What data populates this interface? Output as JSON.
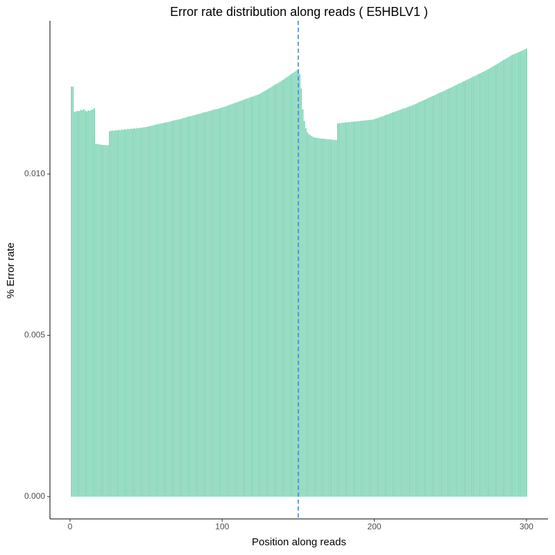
{
  "chart_data": {
    "type": "bar",
    "title": "Error rate distribution along reads ( E5HBLV1 )",
    "xlabel": "Position along reads",
    "ylabel": "% Error rate",
    "color": "#7dd3b4",
    "vline": {
      "x": 150,
      "color": "#3a7cc9"
    },
    "xlim": [
      -13.2,
      314.2
    ],
    "ylim": [
      -0.00069,
      0.01475
    ],
    "xticks": [
      0,
      100,
      200,
      300
    ],
    "yticks": [
      {
        "value": 0,
        "label": "0.000"
      },
      {
        "value": 0.005,
        "label": "0.005"
      },
      {
        "value": 0.01,
        "label": "0.010"
      }
    ],
    "grid": false,
    "x": [
      1,
      2,
      3,
      4,
      5,
      6,
      7,
      8,
      9,
      10,
      11,
      12,
      13,
      14,
      15,
      16,
      17,
      18,
      19,
      20,
      21,
      22,
      23,
      24,
      25,
      26,
      27,
      28,
      29,
      30,
      31,
      32,
      33,
      34,
      35,
      36,
      37,
      38,
      39,
      40,
      41,
      42,
      43,
      44,
      45,
      46,
      47,
      48,
      49,
      50,
      51,
      52,
      53,
      54,
      55,
      56,
      57,
      58,
      59,
      60,
      61,
      62,
      63,
      64,
      65,
      66,
      67,
      68,
      69,
      70,
      71,
      72,
      73,
      74,
      75,
      76,
      77,
      78,
      79,
      80,
      81,
      82,
      83,
      84,
      85,
      86,
      87,
      88,
      89,
      90,
      91,
      92,
      93,
      94,
      95,
      96,
      97,
      98,
      99,
      100,
      101,
      102,
      103,
      104,
      105,
      106,
      107,
      108,
      109,
      110,
      111,
      112,
      113,
      114,
      115,
      116,
      117,
      118,
      119,
      120,
      121,
      122,
      123,
      124,
      125,
      126,
      127,
      128,
      129,
      130,
      131,
      132,
      133,
      134,
      135,
      136,
      137,
      138,
      139,
      140,
      141,
      142,
      143,
      144,
      145,
      146,
      147,
      148,
      149,
      150,
      151,
      152,
      153,
      154,
      155,
      156,
      157,
      158,
      159,
      160,
      161,
      162,
      163,
      164,
      165,
      166,
      167,
      168,
      169,
      170,
      171,
      172,
      173,
      174,
      175,
      176,
      177,
      178,
      179,
      180,
      181,
      182,
      183,
      184,
      185,
      186,
      187,
      188,
      189,
      190,
      191,
      192,
      193,
      194,
      195,
      196,
      197,
      198,
      199,
      200,
      201,
      202,
      203,
      204,
      205,
      206,
      207,
      208,
      209,
      210,
      211,
      212,
      213,
      214,
      215,
      216,
      217,
      218,
      219,
      220,
      221,
      222,
      223,
      224,
      225,
      226,
      227,
      228,
      229,
      230,
      231,
      232,
      233,
      234,
      235,
      236,
      237,
      238,
      239,
      240,
      241,
      242,
      243,
      244,
      245,
      246,
      247,
      248,
      249,
      250,
      251,
      252,
      253,
      254,
      255,
      256,
      257,
      258,
      259,
      260,
      261,
      262,
      263,
      264,
      265,
      266,
      267,
      268,
      269,
      270,
      271,
      272,
      273,
      274,
      275,
      276,
      277,
      278,
      279,
      280,
      281,
      282,
      283,
      284,
      285,
      286,
      287,
      288,
      289,
      290,
      291,
      292,
      293,
      294,
      295,
      296,
      297,
      298,
      299,
      300
    ],
    "values": [
      0.01271,
      0.01271,
      0.01193,
      0.01194,
      0.01196,
      0.01195,
      0.01199,
      0.01198,
      0.01201,
      0.01197,
      0.01194,
      0.01198,
      0.01196,
      0.01199,
      0.012,
      0.01204,
      0.01093,
      0.01094,
      0.01092,
      0.01091,
      0.01091,
      0.0109,
      0.0109,
      0.01089,
      0.0109,
      0.01133,
      0.01134,
      0.01135,
      0.01134,
      0.01136,
      0.01135,
      0.01137,
      0.01136,
      0.01138,
      0.01137,
      0.01139,
      0.01138,
      0.0114,
      0.01139,
      0.01141,
      0.0114,
      0.01142,
      0.01141,
      0.01143,
      0.01142,
      0.01144,
      0.01143,
      0.01145,
      0.01145,
      0.01146,
      0.01147,
      0.01148,
      0.01149,
      0.0115,
      0.01152,
      0.01153,
      0.01154,
      0.01155,
      0.01156,
      0.01157,
      0.01158,
      0.01159,
      0.0116,
      0.01161,
      0.01162,
      0.01163,
      0.01165,
      0.01166,
      0.01167,
      0.01168,
      0.01169,
      0.0117,
      0.01171,
      0.01173,
      0.01174,
      0.01175,
      0.01177,
      0.01178,
      0.01179,
      0.0118,
      0.01182,
      0.01183,
      0.01184,
      0.01186,
      0.01187,
      0.01188,
      0.0119,
      0.01191,
      0.01192,
      0.01193,
      0.01195,
      0.01196,
      0.01197,
      0.01199,
      0.012,
      0.01201,
      0.01202,
      0.01203,
      0.01205,
      0.01206,
      0.01208,
      0.01209,
      0.01211,
      0.01213,
      0.01215,
      0.01216,
      0.01218,
      0.0122,
      0.01221,
      0.01223,
      0.01225,
      0.01227,
      0.01228,
      0.0123,
      0.01232,
      0.01234,
      0.01235,
      0.01237,
      0.01239,
      0.0124,
      0.01242,
      0.01244,
      0.01245,
      0.01247,
      0.01249,
      0.01252,
      0.01255,
      0.01258,
      0.0126,
      0.01263,
      0.01266,
      0.01269,
      0.01272,
      0.01275,
      0.01278,
      0.0128,
      0.01283,
      0.01286,
      0.01289,
      0.01292,
      0.01295,
      0.01299,
      0.01302,
      0.01305,
      0.01309,
      0.01312,
      0.01315,
      0.01318,
      0.01322,
      0.01325,
      0.0131,
      0.01265,
      0.012,
      0.01165,
      0.01142,
      0.0113,
      0.01124,
      0.0112,
      0.01117,
      0.01114,
      0.01113,
      0.01112,
      0.01112,
      0.01111,
      0.0111,
      0.0111,
      0.01109,
      0.01109,
      0.01108,
      0.01108,
      0.01107,
      0.01107,
      0.01106,
      0.01106,
      0.01105,
      0.01157,
      0.01158,
      0.01158,
      0.01159,
      0.01159,
      0.0116,
      0.0116,
      0.01161,
      0.01161,
      0.01162,
      0.01162,
      0.01163,
      0.01163,
      0.01164,
      0.01164,
      0.01165,
      0.01165,
      0.01166,
      0.01166,
      0.01167,
      0.01167,
      0.01168,
      0.01168,
      0.01169,
      0.0117,
      0.01172,
      0.01173,
      0.01175,
      0.01177,
      0.01179,
      0.0118,
      0.01182,
      0.01184,
      0.01185,
      0.01187,
      0.01189,
      0.01191,
      0.01192,
      0.01194,
      0.01196,
      0.01198,
      0.01199,
      0.01201,
      0.01203,
      0.01204,
      0.01206,
      0.01208,
      0.0121,
      0.01211,
      0.01213,
      0.01215,
      0.01217,
      0.01219,
      0.01222,
      0.01224,
      0.01226,
      0.01228,
      0.0123,
      0.01232,
      0.01235,
      0.01237,
      0.01239,
      0.01241,
      0.01243,
      0.01245,
      0.01248,
      0.0125,
      0.01252,
      0.01254,
      0.01256,
      0.01258,
      0.01261,
      0.01263,
      0.01265,
      0.01267,
      0.01269,
      0.01272,
      0.01274,
      0.01276,
      0.01279,
      0.01281,
      0.01283,
      0.01286,
      0.01288,
      0.0129,
      0.01293,
      0.01295,
      0.01297,
      0.01299,
      0.01302,
      0.01304,
      0.01306,
      0.01309,
      0.01311,
      0.01313,
      0.01316,
      0.01318,
      0.0132,
      0.01323,
      0.01325,
      0.01328,
      0.01331,
      0.01334,
      0.01336,
      0.01339,
      0.01342,
      0.01345,
      0.01348,
      0.01351,
      0.01354,
      0.01356,
      0.01359,
      0.01362,
      0.01365,
      0.01368,
      0.0137,
      0.01372,
      0.01374,
      0.01376,
      0.01378,
      0.0138,
      0.01382,
      0.01384,
      0.01387,
      0.01389
    ]
  }
}
